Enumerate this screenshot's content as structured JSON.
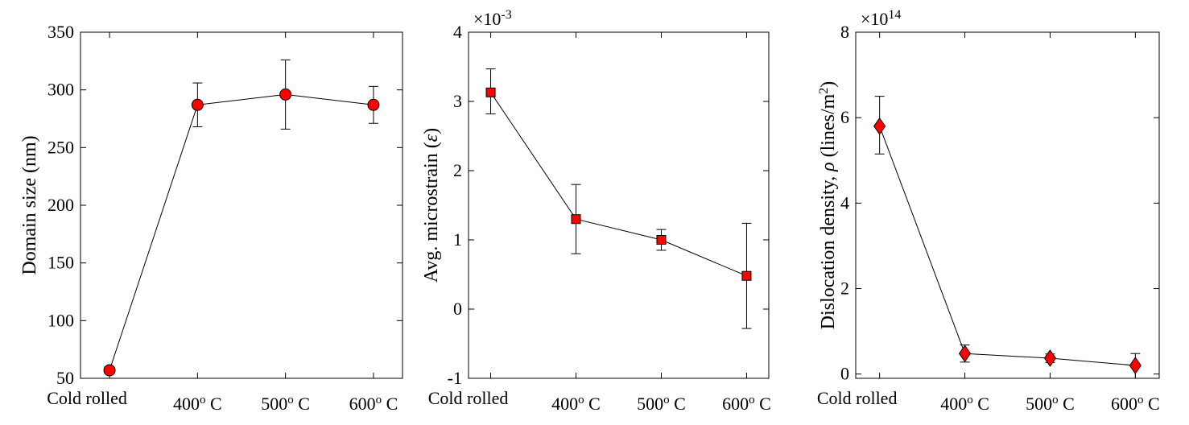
{
  "chart_data": [
    {
      "type": "line",
      "categories": [
        "Cold rolled",
        "400o C",
        "500o C",
        "600o C"
      ],
      "category_ticks": [
        {
          "base": "Cold rolled",
          "sup": "",
          "tail": ""
        },
        {
          "base": "400",
          "sup": "o",
          "tail": " C"
        },
        {
          "base": "500",
          "sup": "o",
          "tail": " C"
        },
        {
          "base": "600",
          "sup": "o",
          "tail": " C"
        }
      ],
      "series": [
        {
          "name": "Domain size",
          "values": [
            57,
            287,
            296,
            287
          ],
          "err_low": [
            54,
            268,
            266,
            271
          ],
          "err_high": [
            60,
            306,
            326,
            303
          ],
          "marker": "circle",
          "color": "#ff0000"
        }
      ],
      "ylabel": {
        "text": "Domain size (nm)"
      },
      "ylim": [
        50,
        350
      ],
      "yticks": [
        50,
        100,
        150,
        200,
        250,
        300,
        350
      ],
      "ytick_labels": [
        "50",
        "100",
        "150",
        "200",
        "250",
        "300",
        "350"
      ],
      "exponent": null,
      "grid": false
    },
    {
      "type": "line",
      "categories": [
        "Cold rolled",
        "400o C",
        "500o C",
        "600o C"
      ],
      "category_ticks": [
        {
          "base": "Cold rolled",
          "sup": "",
          "tail": ""
        },
        {
          "base": "400",
          "sup": "o",
          "tail": " C"
        },
        {
          "base": "500",
          "sup": "o",
          "tail": " C"
        },
        {
          "base": "600",
          "sup": "o",
          "tail": " C"
        }
      ],
      "series": [
        {
          "name": "Avg. microstrain",
          "values": [
            3.13,
            1.3,
            1.0,
            0.48
          ],
          "err_low": [
            2.82,
            0.8,
            0.85,
            -0.28
          ],
          "err_high": [
            3.47,
            1.8,
            1.15,
            1.24
          ],
          "marker": "square",
          "color": "#ff0000"
        }
      ],
      "ylabel": {
        "text": "Avg. microstrain (",
        "symbol": "ε",
        "tail": ")"
      },
      "ylim": [
        -1,
        4
      ],
      "yticks": [
        -1,
        0,
        1,
        2,
        3,
        4
      ],
      "ytick_labels": [
        "-1",
        "0",
        "1",
        "2",
        "3",
        "4"
      ],
      "exponent": {
        "base": "×10",
        "power": "-3"
      },
      "grid": false
    },
    {
      "type": "line",
      "categories": [
        "Cold rolled",
        "400o C",
        "500o C",
        "600o C"
      ],
      "category_ticks": [
        {
          "base": "Cold rolled",
          "sup": "",
          "tail": ""
        },
        {
          "base": "400",
          "sup": "o",
          "tail": " C"
        },
        {
          "base": "500",
          "sup": "o",
          "tail": " C"
        },
        {
          "base": "600",
          "sup": "o",
          "tail": " C"
        }
      ],
      "series": [
        {
          "name": "Dislocation density",
          "values": [
            5.8,
            0.48,
            0.37,
            0.2
          ],
          "err_low": [
            5.15,
            0.28,
            0.27,
            -0.1
          ],
          "err_high": [
            6.5,
            0.68,
            0.47,
            0.48
          ],
          "marker": "diamond",
          "color": "#ff0000"
        }
      ],
      "ylabel": {
        "text": "Dislocation density, ",
        "symbol": "ρ",
        "tail": " (lines/m",
        "sup": "2",
        "end": ")"
      },
      "ylim": [
        -0.1,
        8
      ],
      "yticks": [
        0,
        2,
        4,
        6,
        8
      ],
      "ytick_labels": [
        "0",
        "2",
        "4",
        "6",
        "8"
      ],
      "exponent": {
        "base": "×10",
        "power": "14"
      },
      "grid": false
    }
  ]
}
